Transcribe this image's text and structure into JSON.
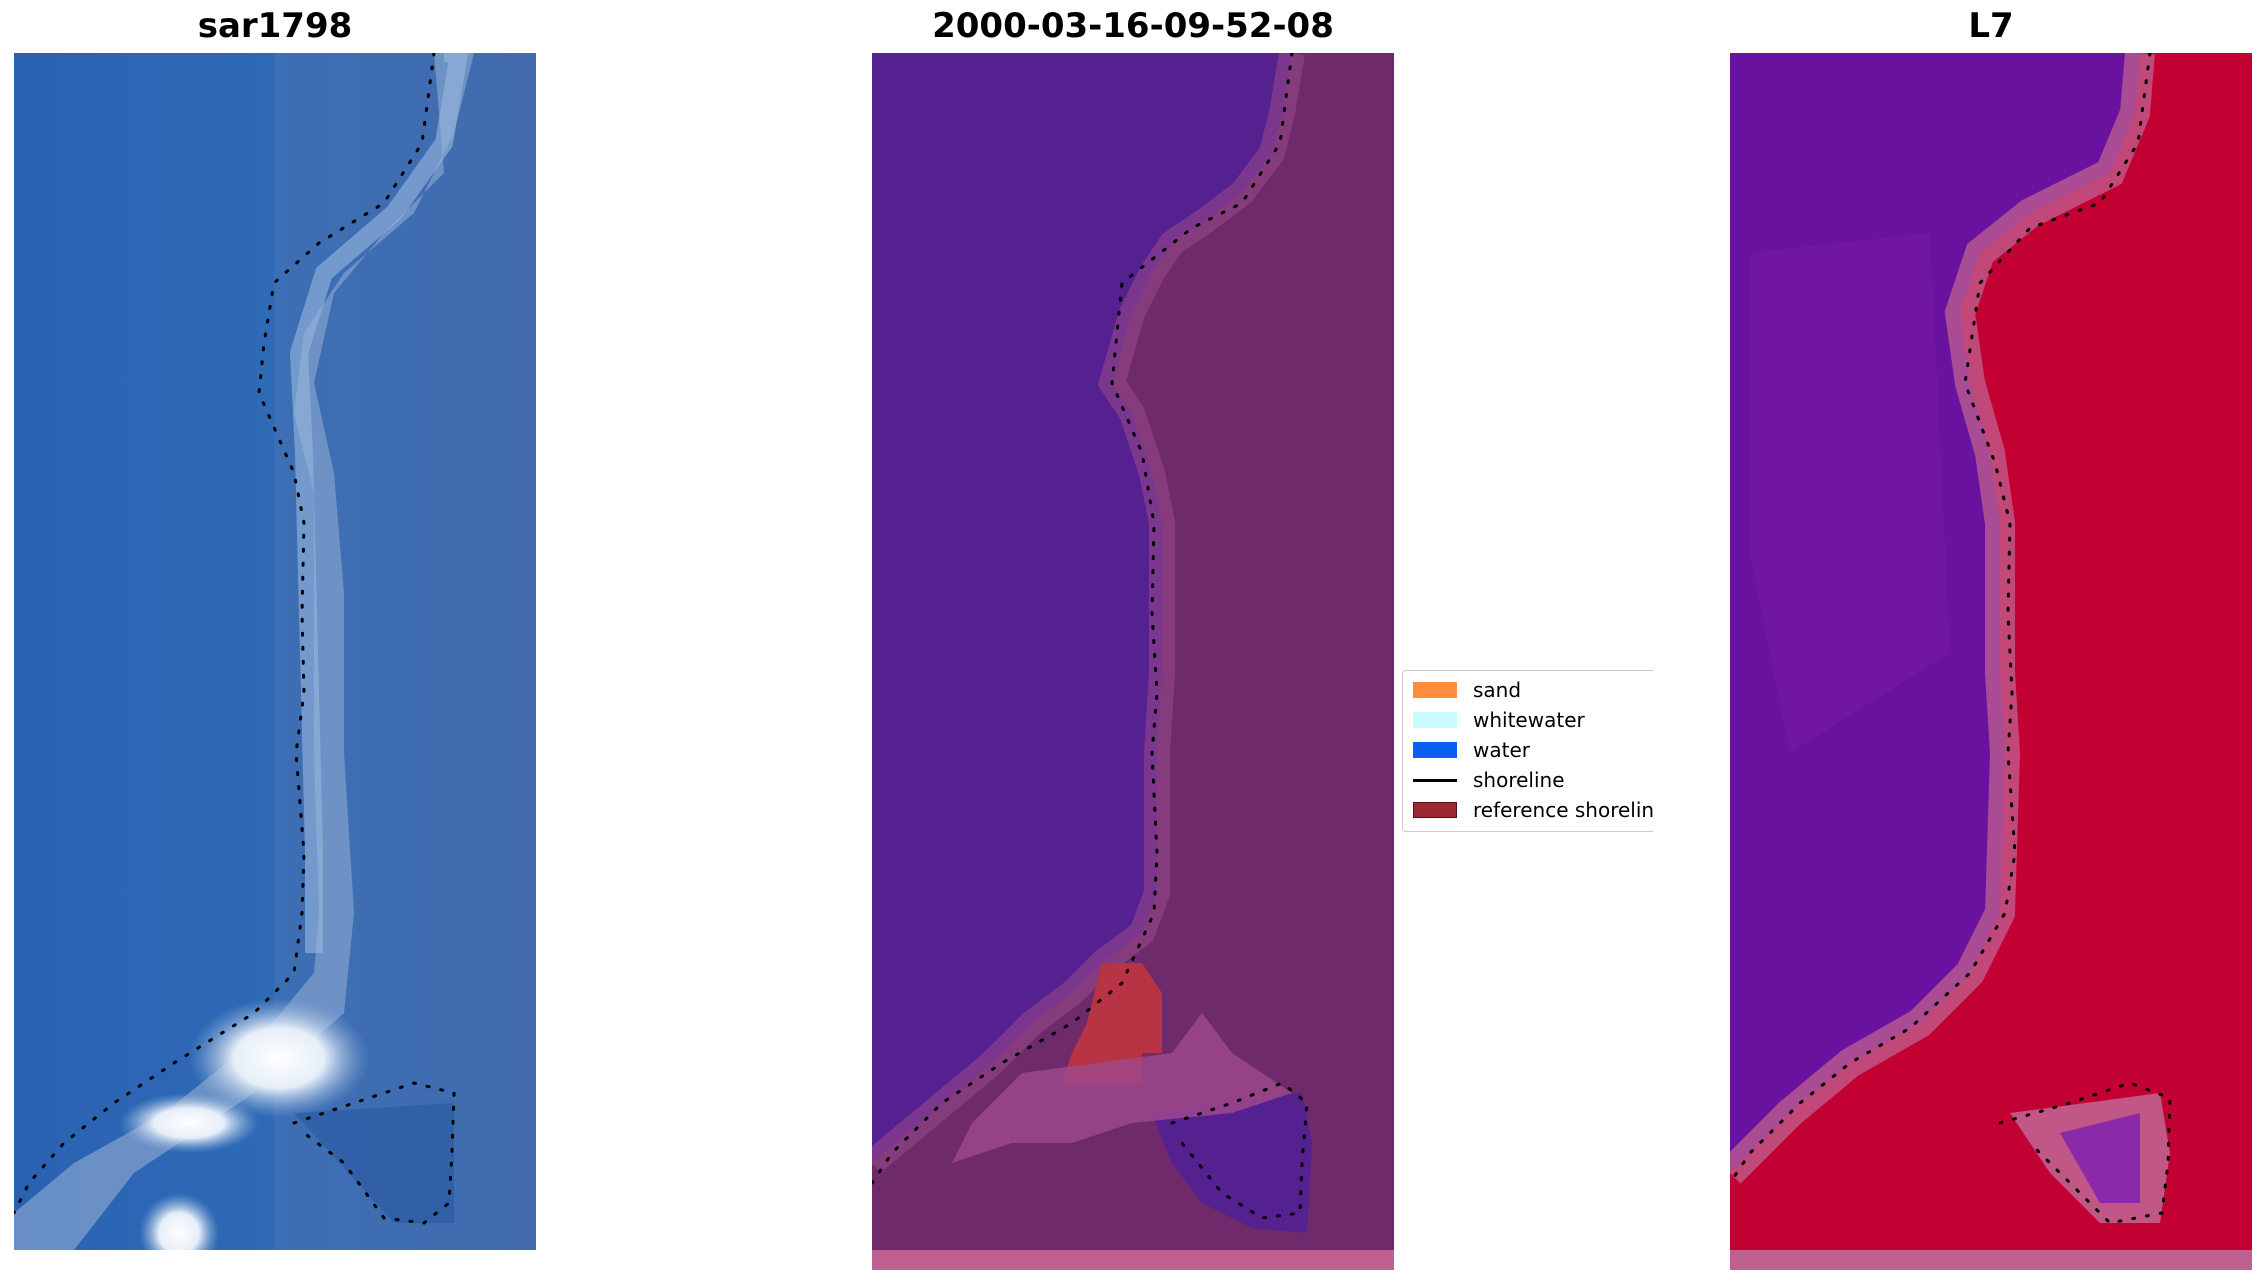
{
  "panels": [
    {
      "title": "sar1798"
    },
    {
      "title": "2000-03-16-09-52-08"
    },
    {
      "title": "L7"
    }
  ],
  "legend": {
    "items": [
      {
        "label": "sand",
        "color": "#ff8c3c",
        "kind": "patch"
      },
      {
        "label": "whitewater",
        "color": "#c8fcff",
        "kind": "patch"
      },
      {
        "label": "water",
        "color": "#0a5ff0",
        "kind": "patch"
      },
      {
        "label": "shoreline",
        "color": "#000000",
        "kind": "line"
      },
      {
        "label": "reference shoreline buffer",
        "color": "#9b2a33",
        "kind": "patch"
      }
    ]
  },
  "colors": {
    "rgb_water": "#2f66b0",
    "rgb_shore": "#8fb0d8",
    "class_water": "#552090",
    "class_land": "#6e2a6a",
    "class_sand": "#b83444",
    "class_strip": "#c06090",
    "ndwi_water": "#6a12a0",
    "ndwi_land": "#c20032",
    "ndwi_edge": "#c06090"
  }
}
